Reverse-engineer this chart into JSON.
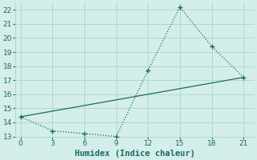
{
  "xlabel": "Humidex (Indice chaleur)",
  "line1_x": [
    0,
    3,
    6,
    9,
    12,
    15,
    18,
    21
  ],
  "line1_y": [
    14.4,
    13.4,
    13.2,
    13.0,
    17.7,
    22.2,
    19.4,
    17.2
  ],
  "line2_x": [
    0,
    21
  ],
  "line2_y": [
    14.4,
    17.2
  ],
  "line_color": "#1a6b5e",
  "bg_color": "#d4eeeb",
  "grid_color": "#b0d8d4",
  "xlim": [
    -0.5,
    22
  ],
  "ylim": [
    13,
    22.5
  ],
  "xticks": [
    0,
    3,
    6,
    9,
    12,
    15,
    18,
    21
  ],
  "yticks": [
    13,
    14,
    15,
    16,
    17,
    18,
    19,
    20,
    21,
    22
  ],
  "tick_fontsize": 6.5,
  "xlabel_fontsize": 7.5
}
